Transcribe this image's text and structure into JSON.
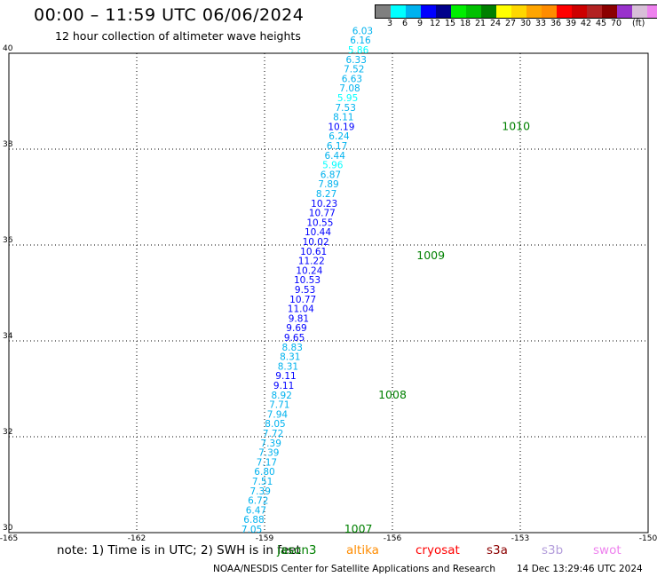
{
  "header": {
    "title": "00:00 – 11:59 UTC 06/06/2024",
    "subtitle": "12 hour collection of altimeter wave heights"
  },
  "colorbar": {
    "colors": [
      "#7f7f7f",
      "#00ffff",
      "#00b2ee",
      "#0000ff",
      "#00008b",
      "#00ee00",
      "#00c000",
      "#008000",
      "#ffff00",
      "#ffd700",
      "#ffa500",
      "#ff8c00",
      "#ff0000",
      "#cd0000",
      "#b22222",
      "#8b0000",
      "#9932cc",
      "#d8bfd8",
      "#ee82ee",
      "#000000"
    ],
    "labels": [
      "3",
      "6",
      "9",
      "12",
      "15",
      "18",
      "21",
      "24",
      "27",
      "30",
      "33",
      "36",
      "39",
      "42",
      "45",
      "70"
    ],
    "unit": "(ft)"
  },
  "note": "note: 1) Time is in UTC; 2) SWH is in feet",
  "legend": [
    {
      "label": "jason3",
      "color": "#008000"
    },
    {
      "label": "altika",
      "color": "#ff8c00"
    },
    {
      "label": "cryosat",
      "color": "#ff0000"
    },
    {
      "label": "s3a",
      "color": "#8b0000"
    },
    {
      "label": "s3b",
      "color": "#b39ddb"
    },
    {
      "label": "swot",
      "color": "#ee82ee"
    }
  ],
  "footer": "NOAA/NESDIS Center for Satellite Applications and Research",
  "timestamp": "14 Dec 13:29:46 UTC 2024",
  "chart_data": {
    "type": "scatter",
    "xlim": [
      -165,
      -150
    ],
    "ylim": [
      30,
      40
    ],
    "x_ticks": [
      "-165",
      "-162",
      "-159",
      "-156",
      "-153",
      "-150"
    ],
    "y_ticks": [
      "30",
      "32",
      "34",
      "36",
      "38",
      "40"
    ],
    "grid": true,
    "series": [
      {
        "points": [
          {
            "lon": -159.3,
            "lat": 30.0,
            "v": "7.05",
            "c": "#00b2ee"
          },
          {
            "lon": -159.25,
            "lat": 30.2,
            "v": "6.88",
            "c": "#00b2ee"
          },
          {
            "lon": -159.2,
            "lat": 30.4,
            "v": "6.47",
            "c": "#00b2ee"
          },
          {
            "lon": -159.15,
            "lat": 30.6,
            "v": "6.72",
            "c": "#00b2ee"
          },
          {
            "lon": -159.1,
            "lat": 30.8,
            "v": "7.39",
            "c": "#00b2ee"
          },
          {
            "lon": -159.05,
            "lat": 31.0,
            "v": "7.51",
            "c": "#00b2ee"
          },
          {
            "lon": -159.0,
            "lat": 31.2,
            "v": "6.80",
            "c": "#00b2ee"
          },
          {
            "lon": -158.95,
            "lat": 31.4,
            "v": "7.17",
            "c": "#00b2ee"
          },
          {
            "lon": -158.9,
            "lat": 31.6,
            "v": "7.39",
            "c": "#00b2ee"
          },
          {
            "lon": -158.85,
            "lat": 31.8,
            "v": "7.39",
            "c": "#00b2ee"
          },
          {
            "lon": -158.8,
            "lat": 32.0,
            "v": "7.72",
            "c": "#00b2ee"
          },
          {
            "lon": -158.75,
            "lat": 32.2,
            "v": "8.05",
            "c": "#00b2ee"
          },
          {
            "lon": -158.7,
            "lat": 32.4,
            "v": "7.94",
            "c": "#00b2ee"
          },
          {
            "lon": -158.65,
            "lat": 32.6,
            "v": "7.71",
            "c": "#00b2ee"
          },
          {
            "lon": -158.6,
            "lat": 32.8,
            "v": "8.92",
            "c": "#00b2ee"
          },
          {
            "lon": -158.55,
            "lat": 33.0,
            "v": "9.11",
            "c": "#0000ff"
          },
          {
            "lon": -158.5,
            "lat": 33.2,
            "v": "9.11",
            "c": "#0000ff"
          },
          {
            "lon": -158.45,
            "lat": 33.4,
            "v": "8.31",
            "c": "#00b2ee"
          },
          {
            "lon": -158.4,
            "lat": 33.6,
            "v": "8.31",
            "c": "#00b2ee"
          },
          {
            "lon": -158.35,
            "lat": 33.8,
            "v": "8.83",
            "c": "#00b2ee"
          },
          {
            "lon": -158.3,
            "lat": 34.0,
            "v": "9.65",
            "c": "#0000ff"
          },
          {
            "lon": -158.25,
            "lat": 34.2,
            "v": "9.69",
            "c": "#0000ff"
          },
          {
            "lon": -158.2,
            "lat": 34.4,
            "v": "9.81",
            "c": "#0000ff"
          },
          {
            "lon": -158.15,
            "lat": 34.6,
            "v": "11.04",
            "c": "#0000ff"
          },
          {
            "lon": -158.1,
            "lat": 34.8,
            "v": "10.77",
            "c": "#0000ff"
          },
          {
            "lon": -158.05,
            "lat": 35.0,
            "v": "9.53",
            "c": "#0000ff"
          },
          {
            "lon": -158.0,
            "lat": 35.2,
            "v": "10.53",
            "c": "#0000ff"
          },
          {
            "lon": -157.95,
            "lat": 35.4,
            "v": "10.24",
            "c": "#0000ff"
          },
          {
            "lon": -157.9,
            "lat": 35.6,
            "v": "11.22",
            "c": "#0000ff"
          },
          {
            "lon": -157.85,
            "lat": 35.8,
            "v": "10.61",
            "c": "#0000ff"
          },
          {
            "lon": -157.8,
            "lat": 36.0,
            "v": "10.02",
            "c": "#0000ff"
          },
          {
            "lon": -157.75,
            "lat": 36.2,
            "v": "10.44",
            "c": "#0000ff"
          },
          {
            "lon": -157.7,
            "lat": 36.4,
            "v": "10.55",
            "c": "#0000ff"
          },
          {
            "lon": -157.65,
            "lat": 36.6,
            "v": "10.77",
            "c": "#0000ff"
          },
          {
            "lon": -157.6,
            "lat": 36.8,
            "v": "10.23",
            "c": "#0000ff"
          },
          {
            "lon": -157.55,
            "lat": 37.0,
            "v": "8.27",
            "c": "#00b2ee"
          },
          {
            "lon": -157.5,
            "lat": 37.2,
            "v": "7.89",
            "c": "#00b2ee"
          },
          {
            "lon": -157.45,
            "lat": 37.4,
            "v": "6.87",
            "c": "#00b2ee"
          },
          {
            "lon": -157.4,
            "lat": 37.6,
            "v": "5.96",
            "c": "#00ffff"
          },
          {
            "lon": -157.35,
            "lat": 37.8,
            "v": "6.44",
            "c": "#00b2ee"
          },
          {
            "lon": -157.3,
            "lat": 38.0,
            "v": "6.17",
            "c": "#00b2ee"
          },
          {
            "lon": -157.25,
            "lat": 38.2,
            "v": "6.24",
            "c": "#00b2ee"
          },
          {
            "lon": -157.2,
            "lat": 38.4,
            "v": "10.19",
            "c": "#0000ff"
          },
          {
            "lon": -157.15,
            "lat": 38.6,
            "v": "8.11",
            "c": "#00b2ee"
          },
          {
            "lon": -157.1,
            "lat": 38.8,
            "v": "7.53",
            "c": "#00b2ee"
          },
          {
            "lon": -157.05,
            "lat": 39.0,
            "v": "5.95",
            "c": "#00ffff"
          },
          {
            "lon": -157.0,
            "lat": 39.2,
            "v": "7.08",
            "c": "#00b2ee"
          },
          {
            "lon": -156.95,
            "lat": 39.4,
            "v": "6.63",
            "c": "#00b2ee"
          },
          {
            "lon": -156.9,
            "lat": 39.6,
            "v": "7.52",
            "c": "#00b2ee"
          },
          {
            "lon": -156.85,
            "lat": 39.8,
            "v": "6.33",
            "c": "#00b2ee"
          },
          {
            "lon": -156.8,
            "lat": 40.0,
            "v": "5.86",
            "c": "#00ffff"
          },
          {
            "lon": -156.75,
            "lat": 40.2,
            "v": "6.16",
            "c": "#00b2ee"
          },
          {
            "lon": -156.7,
            "lat": 40.4,
            "v": "6.03",
            "c": "#00b2ee"
          }
        ]
      }
    ],
    "annotations": [
      {
        "lon": -156.8,
        "lat": 30.0,
        "text": "1007",
        "c": "#008000"
      },
      {
        "lon": -156.0,
        "lat": 32.8,
        "text": "1008",
        "c": "#008000"
      },
      {
        "lon": -155.1,
        "lat": 35.7,
        "text": "1009",
        "c": "#008000"
      },
      {
        "lon": -153.1,
        "lat": 38.4,
        "text": "1010",
        "c": "#008000"
      }
    ]
  }
}
